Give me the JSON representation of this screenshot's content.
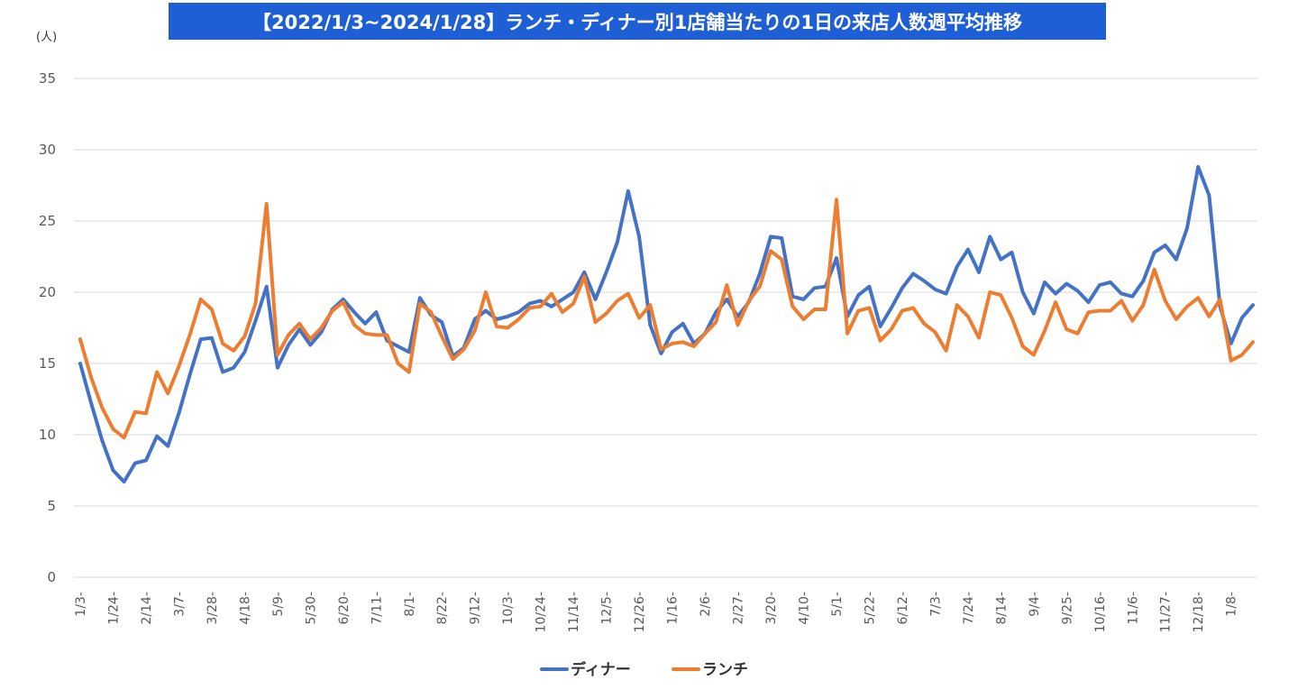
{
  "chart_data": {
    "type": "line",
    "title": "【2022/1/3~2024/1/28】ランチ・ディナー別1店舗当たりの1日の来店人数週平均推移",
    "ylabel_unit": "(人)",
    "ylim": [
      0,
      35
    ],
    "yticks": [
      0,
      5,
      10,
      15,
      20,
      25,
      30,
      35
    ],
    "xtick_labels": [
      "1/3-",
      "1/24-",
      "2/14-",
      "3/7-",
      "3/28-",
      "4/18-",
      "5/9-",
      "5/30-",
      "6/20-",
      "7/11-",
      "8/1-",
      "8/22-",
      "9/12-",
      "10/3-",
      "10/24-",
      "11/14-",
      "12/5-",
      "12/26-",
      "1/16-",
      "2/6-",
      "2/27-",
      "3/20-",
      "4/10-",
      "5/1-",
      "5/22-",
      "6/12-",
      "7/3-",
      "7/24-",
      "8/14-",
      "9/4-",
      "9/25-",
      "10/16-",
      "11/6-",
      "11/27-",
      "12/18-",
      "1/8-"
    ],
    "legend_position": "bottom",
    "colors": {
      "dinner": "#4472c4",
      "lunch": "#ed7d31",
      "title_bg": "#1f5fd6",
      "grid": "#d9d9d9"
    },
    "series": [
      {
        "name": "ディナー",
        "values": [
          15.0,
          12.2,
          9.6,
          7.5,
          6.7,
          8.0,
          8.2,
          9.9,
          9.2,
          11.5,
          14.2,
          16.7,
          16.8,
          14.4,
          14.7,
          15.8,
          18.0,
          20.4,
          14.7,
          16.3,
          17.4,
          16.3,
          17.2,
          18.8,
          19.5,
          18.6,
          17.8,
          18.6,
          16.6,
          16.2,
          15.8,
          19.6,
          18.4,
          17.9,
          15.5,
          16.1,
          18.1,
          18.7,
          18.1,
          18.3,
          18.6,
          19.2,
          19.4,
          19.0,
          19.5,
          20.0,
          21.4,
          19.5,
          21.4,
          23.5,
          27.1,
          23.9,
          17.7,
          15.7,
          17.2,
          17.8,
          16.4,
          17.1,
          18.6,
          19.5,
          18.3,
          19.3,
          21.3,
          23.9,
          23.8,
          19.7,
          19.5,
          20.3,
          20.4,
          22.4,
          18.3,
          19.8,
          20.4,
          17.6,
          18.9,
          20.3,
          21.3,
          20.8,
          20.2,
          19.9,
          21.8,
          23.0,
          21.4,
          23.9,
          22.3,
          22.8,
          20.0,
          18.5,
          20.7,
          19.9,
          20.6,
          20.1,
          19.3,
          20.5,
          20.7,
          19.9,
          19.7,
          20.8,
          22.8,
          23.3,
          22.3,
          24.5,
          28.8,
          26.8,
          19.0,
          16.4,
          18.2,
          19.1
        ]
      },
      {
        "name": "ランチ",
        "values": [
          16.7,
          14.0,
          11.9,
          10.4,
          9.8,
          11.6,
          11.5,
          14.4,
          12.9,
          14.8,
          17.0,
          19.5,
          18.8,
          16.4,
          15.9,
          16.9,
          19.2,
          26.2,
          15.6,
          17.0,
          17.8,
          16.7,
          17.5,
          18.7,
          19.3,
          17.7,
          17.1,
          17.0,
          17.0,
          15.0,
          14.4,
          19.2,
          18.6,
          16.9,
          15.3,
          16.0,
          17.3,
          20.0,
          17.6,
          17.5,
          18.1,
          18.9,
          19.0,
          19.9,
          18.6,
          19.2,
          21.1,
          17.9,
          18.5,
          19.4,
          19.9,
          18.2,
          19.1,
          16.0,
          16.4,
          16.5,
          16.2,
          17.1,
          17.9,
          20.5,
          17.7,
          19.4,
          20.4,
          22.9,
          22.3,
          19.0,
          18.1,
          18.8,
          18.8,
          26.5,
          17.1,
          18.7,
          18.9,
          16.6,
          17.4,
          18.7,
          18.9,
          17.8,
          17.2,
          15.9,
          19.1,
          18.3,
          16.8,
          20.0,
          19.8,
          18.2,
          16.2,
          15.6,
          17.3,
          19.3,
          17.4,
          17.1,
          18.6,
          18.7,
          18.7,
          19.4,
          18.0,
          19.1,
          21.6,
          19.4,
          18.1,
          19.0,
          19.6,
          18.3,
          19.5,
          15.2,
          15.6,
          16.5
        ]
      }
    ]
  }
}
